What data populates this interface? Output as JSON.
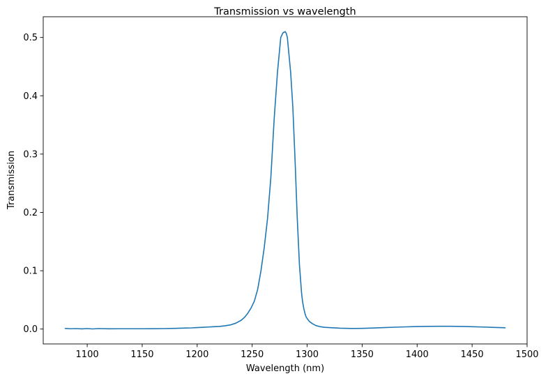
{
  "chart_data": {
    "type": "line",
    "title": "Transmission vs wavelength",
    "xlabel": "Wavelength (nm)",
    "ylabel": "Transmission",
    "xlim": [
      1060,
      1500
    ],
    "ylim": [
      -0.0255,
      0.5355
    ],
    "xticks": [
      1100,
      1150,
      1200,
      1250,
      1300,
      1350,
      1400,
      1450,
      1500
    ],
    "yticks": [
      0.0,
      0.1,
      0.2,
      0.3,
      0.4,
      0.5
    ],
    "ytick_labels": [
      "0.0",
      "0.1",
      "0.2",
      "0.3",
      "0.4",
      "0.5"
    ],
    "grid": false,
    "line_color": "#1f77b4",
    "series": [
      {
        "x": [
          1080,
          1085,
          1090,
          1095,
          1100,
          1105,
          1110,
          1120,
          1130,
          1140,
          1150,
          1160,
          1170,
          1175,
          1180,
          1185,
          1190,
          1195,
          1200,
          1205,
          1210,
          1215,
          1220,
          1225,
          1230,
          1235,
          1240,
          1243,
          1246,
          1249,
          1252,
          1255,
          1258,
          1261,
          1264,
          1267,
          1270,
          1273,
          1276,
          1278,
          1280,
          1281,
          1282,
          1283,
          1285,
          1287,
          1289,
          1291,
          1293,
          1295,
          1296,
          1297,
          1298,
          1299,
          1300,
          1302,
          1305,
          1308,
          1312,
          1316,
          1320,
          1330,
          1340,
          1350,
          1360,
          1370,
          1380,
          1390,
          1400,
          1410,
          1420,
          1430,
          1440,
          1445,
          1450,
          1460,
          1470,
          1480
        ],
        "y": [
          0.001,
          0.0005,
          0.0008,
          0.0003,
          0.0008,
          0.0002,
          0.0008,
          0.0004,
          0.0005,
          0.0005,
          0.0005,
          0.0006,
          0.0008,
          0.001,
          0.0012,
          0.0015,
          0.0018,
          0.002,
          0.0025,
          0.003,
          0.0035,
          0.004,
          0.0045,
          0.0055,
          0.007,
          0.01,
          0.015,
          0.02,
          0.027,
          0.036,
          0.048,
          0.068,
          0.1,
          0.14,
          0.19,
          0.26,
          0.36,
          0.44,
          0.5,
          0.508,
          0.51,
          0.507,
          0.5,
          0.48,
          0.44,
          0.38,
          0.29,
          0.19,
          0.11,
          0.06,
          0.045,
          0.035,
          0.027,
          0.021,
          0.018,
          0.013,
          0.009,
          0.006,
          0.004,
          0.003,
          0.0025,
          0.0015,
          0.001,
          0.0012,
          0.0018,
          0.0025,
          0.0032,
          0.0038,
          0.0043,
          0.0046,
          0.0048,
          0.0048,
          0.0045,
          0.0043,
          0.004,
          0.0035,
          0.0028,
          0.0022
        ]
      }
    ]
  }
}
